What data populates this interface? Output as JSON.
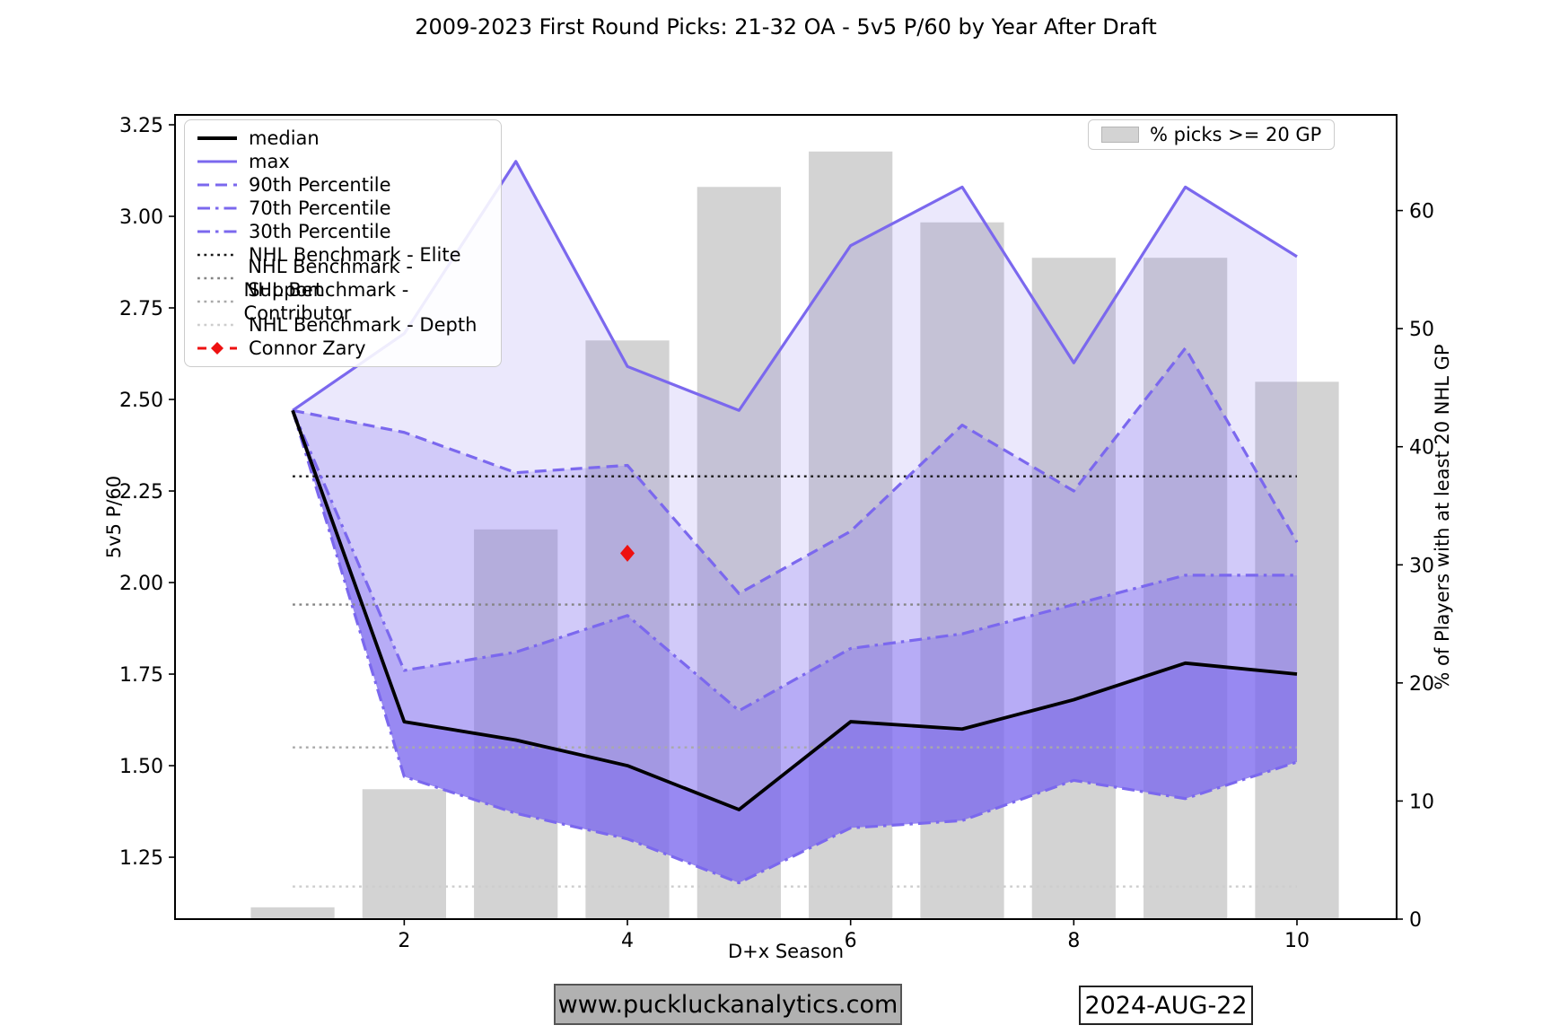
{
  "title": "2009-2023 First Round Picks: 21-32 OA - 5v5 P/60 by Year After Draft",
  "footer": {
    "site": "www.puckluckanalytics.com",
    "date": "2024-AUG-22"
  },
  "bar_legend": {
    "label": "% picks >= 20 GP",
    "swatch_color": "#d3d3d3"
  },
  "legend_entries": [
    {
      "label": "median",
      "style": "solid",
      "color": "#000000",
      "width": 4
    },
    {
      "label": "max",
      "style": "solid",
      "color": "#7b68ee",
      "width": 3
    },
    {
      "label": "90th Percentile",
      "style": "dashed",
      "color": "#7b68ee",
      "width": 3
    },
    {
      "label": "70th Percentile",
      "style": "dashdot",
      "color": "#7b68ee",
      "width": 3
    },
    {
      "label": "30th Percentile",
      "style": "dashdot",
      "color": "#7b68ee",
      "width": 3
    },
    {
      "label": "NHL Benchmark - Elite",
      "style": "dotted",
      "color": "#1a1a1a",
      "width": 2.4
    },
    {
      "label": "NHL Benchmark - Support",
      "style": "dotted",
      "color": "#848484",
      "width": 2.4
    },
    {
      "label": "NHL Benchmark - Contributor",
      "style": "dotted",
      "color": "#a9a9a9",
      "width": 2.4
    },
    {
      "label": "NHL Benchmark - Depth",
      "style": "dotted",
      "color": "#cdcdcd",
      "width": 2.4
    },
    {
      "label": "Connor Zary",
      "style": "zary",
      "color": "#ee1111",
      "width": 3
    }
  ],
  "chart_data": {
    "type": "line+bar",
    "x": [
      1,
      2,
      3,
      4,
      5,
      6,
      7,
      8,
      9,
      10
    ],
    "series": [
      {
        "name": "max",
        "style": "solid",
        "color": "#7b68ee",
        "width": 3.2,
        "values": [
          2.47,
          2.68,
          3.15,
          2.59,
          2.47,
          2.92,
          3.08,
          2.6,
          3.08,
          2.89
        ]
      },
      {
        "name": "90th Percentile",
        "style": "dashed",
        "color": "#7b68ee",
        "width": 3.2,
        "values": [
          2.47,
          2.41,
          2.3,
          2.32,
          1.97,
          2.14,
          2.43,
          2.25,
          2.64,
          2.11
        ]
      },
      {
        "name": "70th Percentile",
        "style": "dashdot",
        "color": "#7b68ee",
        "width": 3.2,
        "values": [
          2.47,
          1.76,
          1.81,
          1.91,
          1.65,
          1.82,
          1.86,
          1.94,
          2.02,
          2.02
        ]
      },
      {
        "name": "median",
        "style": "solid",
        "color": "#000000",
        "width": 3.8,
        "values": [
          2.47,
          1.62,
          1.57,
          1.5,
          1.38,
          1.62,
          1.6,
          1.68,
          1.78,
          1.75
        ]
      },
      {
        "name": "30th Percentile",
        "style": "dashdot",
        "color": "#7b68ee",
        "width": 3.2,
        "values": [
          2.47,
          1.47,
          1.37,
          1.3,
          1.18,
          1.33,
          1.35,
          1.46,
          1.41,
          1.51
        ]
      }
    ],
    "bands": [
      {
        "upper": 0,
        "lower": 1,
        "alpha": 0.15
      },
      {
        "upper": 1,
        "lower": 2,
        "alpha": 0.35
      },
      {
        "upper": 2,
        "lower": 3,
        "alpha": 0.55
      },
      {
        "upper": 3,
        "lower": 4,
        "alpha": 0.78
      }
    ],
    "band_base_color": [
      123,
      104,
      238
    ],
    "benchmarks": [
      {
        "label": "NHL Benchmark - Elite",
        "value": 2.29,
        "color": "#1a1a1a"
      },
      {
        "label": "NHL Benchmark - Support",
        "value": 1.94,
        "color": "#848484"
      },
      {
        "label": "NHL Benchmark - Contributor",
        "value": 1.55,
        "color": "#a9a9a9"
      },
      {
        "label": "NHL Benchmark - Depth",
        "value": 1.17,
        "color": "#cdcdcd"
      }
    ],
    "player_point": {
      "label": "Connor Zary",
      "x": 4,
      "y": 2.08,
      "marker": "diamond",
      "color": "#ee1111"
    },
    "bars": {
      "name": "% picks >= 20 GP",
      "color": "#d3d3d3",
      "width_units": 0.75,
      "values": [
        1,
        11,
        33,
        49,
        62,
        65,
        59,
        56,
        56,
        45.5
      ]
    },
    "axes": {
      "x": {
        "label": "D+x Season",
        "range": [
          -0.054,
          10.893
        ],
        "ticks": [
          {
            "v": 2,
            "label": "2"
          },
          {
            "v": 4,
            "label": "4"
          },
          {
            "v": 6,
            "label": "6"
          },
          {
            "v": 8,
            "label": "8"
          },
          {
            "v": 10,
            "label": "10"
          }
        ]
      },
      "y_left": {
        "label": "5v5 P/60",
        "range": [
          1.081,
          3.277
        ],
        "ticks": [
          {
            "v": 1.25,
            "label": "1.25"
          },
          {
            "v": 1.5,
            "label": "1.50"
          },
          {
            "v": 1.75,
            "label": "1.75"
          },
          {
            "v": 2.0,
            "label": "2.00"
          },
          {
            "v": 2.25,
            "label": "2.25"
          },
          {
            "v": 2.5,
            "label": "2.50"
          },
          {
            "v": 2.75,
            "label": "2.75"
          },
          {
            "v": 3.0,
            "label": "3.00"
          },
          {
            "v": 3.25,
            "label": "3.25"
          }
        ]
      },
      "y_right": {
        "label": "% of Players with at least 20 NHL GP",
        "range": [
          0,
          68.1
        ],
        "ticks": [
          {
            "v": 0,
            "label": "0"
          },
          {
            "v": 10,
            "label": "10"
          },
          {
            "v": 20,
            "label": "20"
          },
          {
            "v": 30,
            "label": "30"
          },
          {
            "v": 40,
            "label": "40"
          },
          {
            "v": 50,
            "label": "50"
          },
          {
            "v": 60,
            "label": "60"
          }
        ]
      },
      "grid": false,
      "legend_position": "upper-left"
    }
  }
}
